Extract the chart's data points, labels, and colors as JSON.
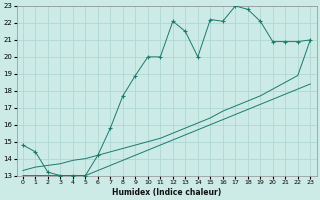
{
  "xlabel": "Humidex (Indice chaleur)",
  "bg_color": "#cceae6",
  "grid_color": "#b0d8d4",
  "line_color": "#1a7a6e",
  "xlim": [
    -0.5,
    23.5
  ],
  "ylim": [
    13,
    23
  ],
  "xticks": [
    0,
    1,
    2,
    3,
    4,
    5,
    6,
    7,
    8,
    9,
    10,
    11,
    12,
    13,
    14,
    15,
    16,
    17,
    18,
    19,
    20,
    21,
    22,
    23
  ],
  "yticks": [
    13,
    14,
    15,
    16,
    17,
    18,
    19,
    20,
    21,
    22,
    23
  ],
  "line1_x": [
    0,
    1,
    2,
    3,
    4,
    5,
    6,
    7,
    8,
    9,
    10,
    11,
    12,
    13,
    14,
    15,
    16,
    17,
    18,
    19,
    20,
    21,
    22,
    23
  ],
  "line1_y": [
    14.8,
    14.4,
    13.2,
    13.0,
    13.0,
    13.0,
    14.2,
    15.8,
    17.7,
    18.9,
    20.0,
    20.0,
    22.1,
    21.5,
    20.0,
    22.2,
    22.1,
    23.0,
    22.8,
    22.1,
    20.9,
    20.9,
    20.9,
    21.0
  ],
  "line2_x": [
    0,
    1,
    2,
    3,
    4,
    5,
    6,
    7,
    8,
    9,
    10,
    11,
    12,
    13,
    14,
    15,
    16,
    17,
    18,
    19,
    20,
    21,
    22,
    23
  ],
  "line2_y": [
    13.3,
    13.5,
    13.6,
    13.7,
    13.9,
    14.0,
    14.2,
    14.4,
    14.6,
    14.8,
    15.0,
    15.2,
    15.5,
    15.8,
    16.1,
    16.4,
    16.8,
    17.1,
    17.4,
    17.7,
    18.1,
    18.5,
    18.9,
    21.0
  ],
  "line3_x": [
    0,
    1,
    2,
    3,
    4,
    5,
    6,
    7,
    8,
    9,
    10,
    11,
    12,
    13,
    14,
    15,
    16,
    17,
    18,
    19,
    20,
    21,
    22,
    23
  ],
  "line3_y": [
    13.0,
    13.0,
    13.0,
    13.0,
    13.0,
    13.0,
    13.3,
    13.6,
    13.9,
    14.2,
    14.5,
    14.8,
    15.1,
    15.4,
    15.7,
    16.0,
    16.3,
    16.6,
    16.9,
    17.2,
    17.5,
    17.8,
    18.1,
    18.4
  ],
  "marker1_x": [
    0,
    1,
    2,
    3,
    4,
    5,
    7,
    8,
    9,
    10,
    11,
    12,
    13,
    15,
    16,
    17,
    18,
    19,
    20,
    21,
    22,
    23
  ],
  "marker1_y": [
    14.8,
    14.4,
    13.2,
    13.0,
    13.0,
    13.0,
    15.8,
    17.7,
    18.9,
    20.0,
    20.0,
    22.1,
    21.5,
    22.2,
    22.1,
    23.0,
    22.8,
    22.1,
    20.9,
    20.9,
    20.9,
    21.0
  ]
}
